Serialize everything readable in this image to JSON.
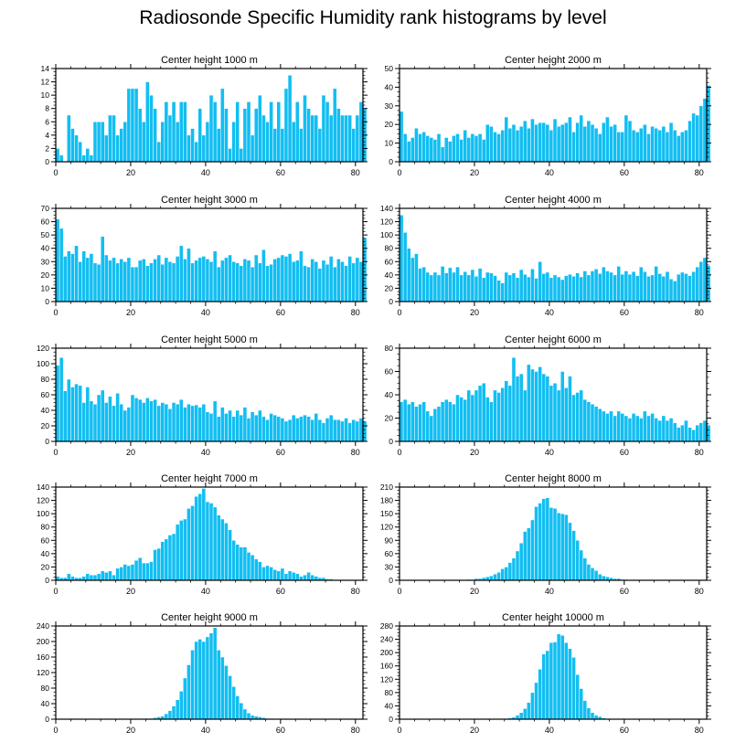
{
  "title": "Radiosonde Specific Humidity rank histograms by level",
  "colors": {
    "bar": "#12BEF2",
    "bar_edge": "#ffffff",
    "axis": "#000000"
  },
  "chart_data": [
    {
      "type": "bar",
      "title": "Center height 1000 m",
      "xlim": [
        0,
        82
      ],
      "ylim": [
        0,
        14
      ],
      "xticks": [
        0,
        20,
        40,
        60,
        80
      ],
      "yticks": [
        0,
        2,
        4,
        6,
        8,
        10,
        12,
        14
      ],
      "values": [
        2,
        1,
        0,
        7,
        5,
        4,
        3,
        1,
        2,
        1,
        6,
        6,
        6,
        4,
        7,
        7,
        4,
        5,
        6,
        11,
        11,
        11,
        8,
        6,
        12,
        10,
        8,
        3,
        6,
        9,
        7,
        9,
        6,
        9,
        9,
        4,
        5,
        3,
        8,
        4,
        6,
        10,
        9,
        5,
        11,
        8,
        2,
        6,
        9,
        2,
        8,
        9,
        4,
        8,
        10,
        7,
        6,
        9,
        5,
        9,
        5,
        11,
        13,
        6,
        9,
        5,
        10,
        8,
        7,
        7,
        5,
        10,
        9,
        7,
        11,
        8,
        7,
        7,
        7,
        5,
        7,
        9,
        8
      ]
    },
    {
      "type": "bar",
      "title": "Center height 2000 m",
      "xlim": [
        0,
        82
      ],
      "ylim": [
        0,
        50
      ],
      "xticks": [
        0,
        20,
        40,
        60,
        80
      ],
      "yticks": [
        0,
        10,
        20,
        30,
        40,
        50
      ],
      "values": [
        27,
        15,
        11,
        13,
        18,
        15,
        16,
        14,
        13,
        12,
        15,
        8,
        13,
        11,
        14,
        15,
        12,
        17,
        13,
        15,
        14,
        15,
        12,
        20,
        19,
        16,
        15,
        17,
        24,
        18,
        20,
        17,
        19,
        22,
        18,
        23,
        20,
        21,
        21,
        20,
        17,
        23,
        19,
        20,
        21,
        24,
        16,
        21,
        25,
        19,
        22,
        20,
        18,
        15,
        21,
        24,
        19,
        20,
        16,
        16,
        25,
        22,
        17,
        16,
        18,
        20,
        15,
        19,
        18,
        17,
        19,
        16,
        21,
        17,
        14,
        16,
        17,
        22,
        26,
        25,
        30,
        34,
        41
      ]
    },
    {
      "type": "bar",
      "title": "Center height 3000 m",
      "xlim": [
        0,
        82
      ],
      "ylim": [
        0,
        70
      ],
      "xticks": [
        0,
        20,
        40,
        60,
        80
      ],
      "yticks": [
        0,
        10,
        20,
        30,
        40,
        50,
        60,
        70
      ],
      "values": [
        62,
        55,
        34,
        38,
        36,
        42,
        30,
        38,
        33,
        36,
        29,
        28,
        49,
        35,
        31,
        33,
        29,
        32,
        30,
        33,
        26,
        26,
        31,
        32,
        27,
        29,
        32,
        35,
        28,
        33,
        30,
        29,
        34,
        42,
        32,
        40,
        29,
        31,
        33,
        34,
        32,
        30,
        38,
        26,
        31,
        33,
        35,
        30,
        29,
        27,
        32,
        31,
        26,
        35,
        29,
        39,
        27,
        28,
        32,
        33,
        35,
        34,
        36,
        30,
        31,
        38,
        27,
        26,
        32,
        30,
        25,
        31,
        28,
        34,
        26,
        32,
        30,
        27,
        34,
        29,
        33,
        30,
        48
      ]
    },
    {
      "type": "bar",
      "title": "Center height 4000 m",
      "xlim": [
        0,
        82
      ],
      "ylim": [
        0,
        140
      ],
      "xticks": [
        0,
        20,
        40,
        60,
        80
      ],
      "yticks": [
        0,
        20,
        40,
        60,
        80,
        100,
        120,
        140
      ],
      "values": [
        130,
        104,
        80,
        66,
        72,
        50,
        52,
        44,
        40,
        44,
        40,
        53,
        43,
        51,
        44,
        52,
        40,
        45,
        40,
        48,
        38,
        50,
        36,
        44,
        43,
        39,
        32,
        28,
        44,
        40,
        43,
        36,
        48,
        41,
        37,
        49,
        35,
        60,
        42,
        44,
        36,
        40,
        37,
        33,
        39,
        41,
        38,
        43,
        37,
        46,
        40,
        46,
        49,
        42,
        52,
        46,
        44,
        40,
        53,
        41,
        46,
        41,
        45,
        39,
        52,
        45,
        38,
        40,
        53,
        42,
        38,
        45,
        34,
        31,
        41,
        44,
        42,
        39,
        45,
        52,
        60,
        66,
        54
      ]
    },
    {
      "type": "bar",
      "title": "Center height 5000 m",
      "xlim": [
        0,
        82
      ],
      "ylim": [
        0,
        120
      ],
      "xticks": [
        0,
        20,
        40,
        60,
        80
      ],
      "yticks": [
        0,
        20,
        40,
        60,
        80,
        100,
        120
      ],
      "values": [
        98,
        108,
        65,
        80,
        70,
        74,
        72,
        50,
        70,
        52,
        48,
        60,
        66,
        50,
        58,
        46,
        62,
        48,
        40,
        44,
        60,
        56,
        54,
        50,
        56,
        52,
        54,
        46,
        50,
        48,
        42,
        50,
        48,
        54,
        44,
        48,
        46,
        47,
        44,
        48,
        38,
        36,
        52,
        32,
        44,
        36,
        40,
        32,
        40,
        34,
        44,
        30,
        38,
        34,
        40,
        32,
        28,
        36,
        34,
        32,
        30,
        26,
        28,
        34,
        30,
        32,
        34,
        32,
        28,
        36,
        28,
        24,
        30,
        34,
        28,
        28,
        26,
        30,
        24,
        28,
        26,
        30,
        26
      ]
    },
    {
      "type": "bar",
      "title": "Center height 6000 m",
      "xlim": [
        0,
        82
      ],
      "ylim": [
        0,
        80
      ],
      "xticks": [
        0,
        20,
        40,
        60,
        80
      ],
      "yticks": [
        0,
        20,
        40,
        60,
        80
      ],
      "values": [
        34,
        36,
        32,
        34,
        30,
        32,
        34,
        26,
        22,
        28,
        30,
        34,
        36,
        34,
        32,
        40,
        38,
        36,
        44,
        40,
        44,
        48,
        50,
        38,
        34,
        44,
        42,
        46,
        52,
        48,
        72,
        56,
        58,
        44,
        66,
        62,
        60,
        64,
        58,
        56,
        48,
        50,
        44,
        60,
        46,
        56,
        40,
        42,
        44,
        36,
        34,
        32,
        30,
        28,
        26,
        24,
        26,
        22,
        26,
        24,
        22,
        20,
        24,
        22,
        20,
        26,
        22,
        24,
        20,
        18,
        22,
        18,
        20,
        16,
        12,
        14,
        18,
        12,
        10,
        14,
        16,
        18,
        14
      ]
    },
    {
      "type": "bar",
      "title": "Center height 7000 m",
      "xlim": [
        0,
        82
      ],
      "ylim": [
        0,
        140
      ],
      "xticks": [
        0,
        20,
        40,
        60,
        80
      ],
      "yticks": [
        0,
        20,
        40,
        60,
        80,
        100,
        120,
        140
      ],
      "values": [
        6,
        4,
        4,
        10,
        6,
        4,
        4,
        6,
        10,
        8,
        8,
        10,
        14,
        12,
        14,
        8,
        18,
        20,
        24,
        22,
        24,
        30,
        34,
        26,
        26,
        28,
        46,
        48,
        58,
        62,
        68,
        70,
        84,
        90,
        92,
        108,
        112,
        126,
        130,
        138,
        118,
        116,
        110,
        98,
        92,
        86,
        76,
        60,
        54,
        50,
        50,
        42,
        38,
        32,
        28,
        20,
        22,
        20,
        16,
        14,
        18,
        10,
        14,
        12,
        10,
        6,
        8,
        12,
        8,
        6,
        4,
        4,
        2,
        2,
        1,
        1,
        0,
        0,
        0,
        0,
        0,
        0,
        0
      ]
    },
    {
      "type": "bar",
      "title": "Center height 8000 m",
      "xlim": [
        0,
        82
      ],
      "ylim": [
        0,
        210
      ],
      "xticks": [
        0,
        20,
        40,
        60,
        80
      ],
      "yticks": [
        0,
        30,
        60,
        90,
        120,
        150,
        180,
        210
      ],
      "values": [
        0,
        0,
        0,
        0,
        0,
        0,
        0,
        0,
        0,
        0,
        0,
        0,
        0,
        0,
        0,
        0,
        0,
        0,
        2,
        2,
        4,
        4,
        6,
        8,
        10,
        14,
        18,
        26,
        30,
        40,
        50,
        66,
        84,
        110,
        118,
        136,
        166,
        174,
        184,
        186,
        164,
        162,
        152,
        150,
        148,
        130,
        112,
        90,
        68,
        50,
        36,
        28,
        22,
        14,
        10,
        8,
        6,
        4,
        4,
        2,
        2,
        1,
        1,
        0,
        0,
        0,
        0,
        0,
        0,
        0,
        0,
        0,
        0,
        0,
        0,
        0,
        0,
        0,
        0,
        0,
        0,
        0,
        0
      ]
    },
    {
      "type": "bar",
      "title": "Center height 9000 m",
      "xlim": [
        0,
        82
      ],
      "ylim": [
        0,
        240
      ],
      "xticks": [
        0,
        20,
        40,
        60,
        80
      ],
      "yticks": [
        0,
        40,
        80,
        120,
        160,
        200,
        240
      ],
      "values": [
        0,
        0,
        0,
        0,
        0,
        0,
        0,
        0,
        0,
        0,
        0,
        0,
        0,
        0,
        0,
        0,
        0,
        0,
        0,
        0,
        0,
        0,
        0,
        0,
        2,
        2,
        4,
        6,
        8,
        14,
        22,
        34,
        50,
        72,
        106,
        140,
        178,
        200,
        206,
        200,
        212,
        222,
        236,
        178,
        160,
        138,
        112,
        84,
        60,
        42,
        26,
        16,
        10,
        8,
        6,
        4,
        2,
        2,
        1,
        1,
        1,
        0,
        0,
        0,
        0,
        0,
        0,
        0,
        0,
        0,
        0,
        0,
        0,
        0,
        0,
        0,
        0,
        0,
        0,
        0,
        0,
        0,
        0
      ]
    },
    {
      "type": "bar",
      "title": "Center height 10000 m",
      "xlim": [
        0,
        82
      ],
      "ylim": [
        0,
        280
      ],
      "xticks": [
        0,
        20,
        40,
        60,
        80
      ],
      "yticks": [
        0,
        40,
        80,
        120,
        160,
        200,
        240,
        280
      ],
      "values": [
        0,
        0,
        0,
        0,
        0,
        0,
        0,
        0,
        0,
        0,
        0,
        0,
        0,
        0,
        0,
        0,
        0,
        0,
        0,
        0,
        0,
        0,
        0,
        0,
        0,
        0,
        0,
        0,
        2,
        4,
        6,
        12,
        20,
        32,
        50,
        80,
        110,
        150,
        196,
        206,
        230,
        232,
        256,
        252,
        230,
        212,
        186,
        134,
        92,
        56,
        34,
        20,
        12,
        8,
        4,
        2,
        2,
        1,
        1,
        0,
        0,
        0,
        0,
        0,
        0,
        0,
        0,
        0,
        0,
        0,
        0,
        0,
        0,
        0,
        0,
        0,
        0,
        0,
        0,
        0,
        0,
        0,
        0
      ]
    }
  ]
}
